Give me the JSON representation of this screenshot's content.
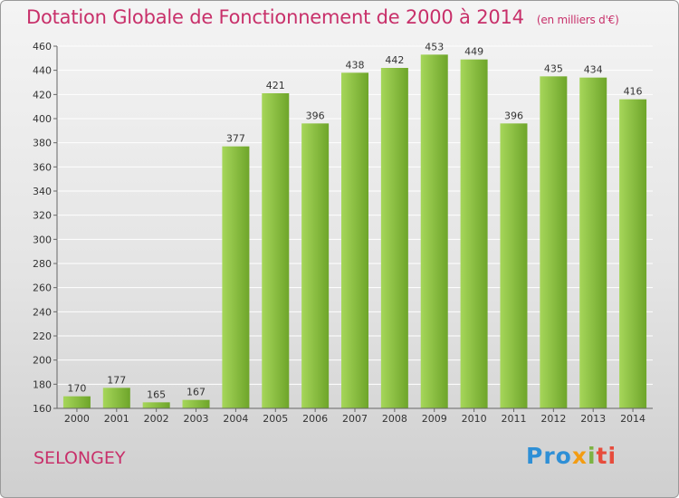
{
  "chart_data": {
    "type": "bar",
    "title": "Dotation Globale de Fonctionnement de 2000 à 2014",
    "unit": "(en milliers d'€)",
    "categories": [
      "2000",
      "2001",
      "2002",
      "2003",
      "2004",
      "2005",
      "2006",
      "2007",
      "2008",
      "2009",
      "2010",
      "2011",
      "2012",
      "2013",
      "2014"
    ],
    "values": [
      170,
      177,
      165,
      167,
      377,
      421,
      396,
      438,
      442,
      453,
      449,
      396,
      435,
      434,
      416
    ],
    "ylim": [
      160,
      460
    ],
    "yticks": [
      160,
      180,
      200,
      220,
      240,
      260,
      280,
      300,
      320,
      340,
      360,
      380,
      400,
      420,
      440,
      460
    ],
    "grid": true,
    "xlabel": "",
    "ylabel": ""
  },
  "commune": "SELONGEY",
  "logo": {
    "p1": "Pro",
    "p2": "x",
    "p3": "i",
    "p4": "ti"
  },
  "colors": {
    "bar_light": "#a6d65a",
    "bar_dark": "#6ea52a",
    "title": "#c8306a"
  }
}
